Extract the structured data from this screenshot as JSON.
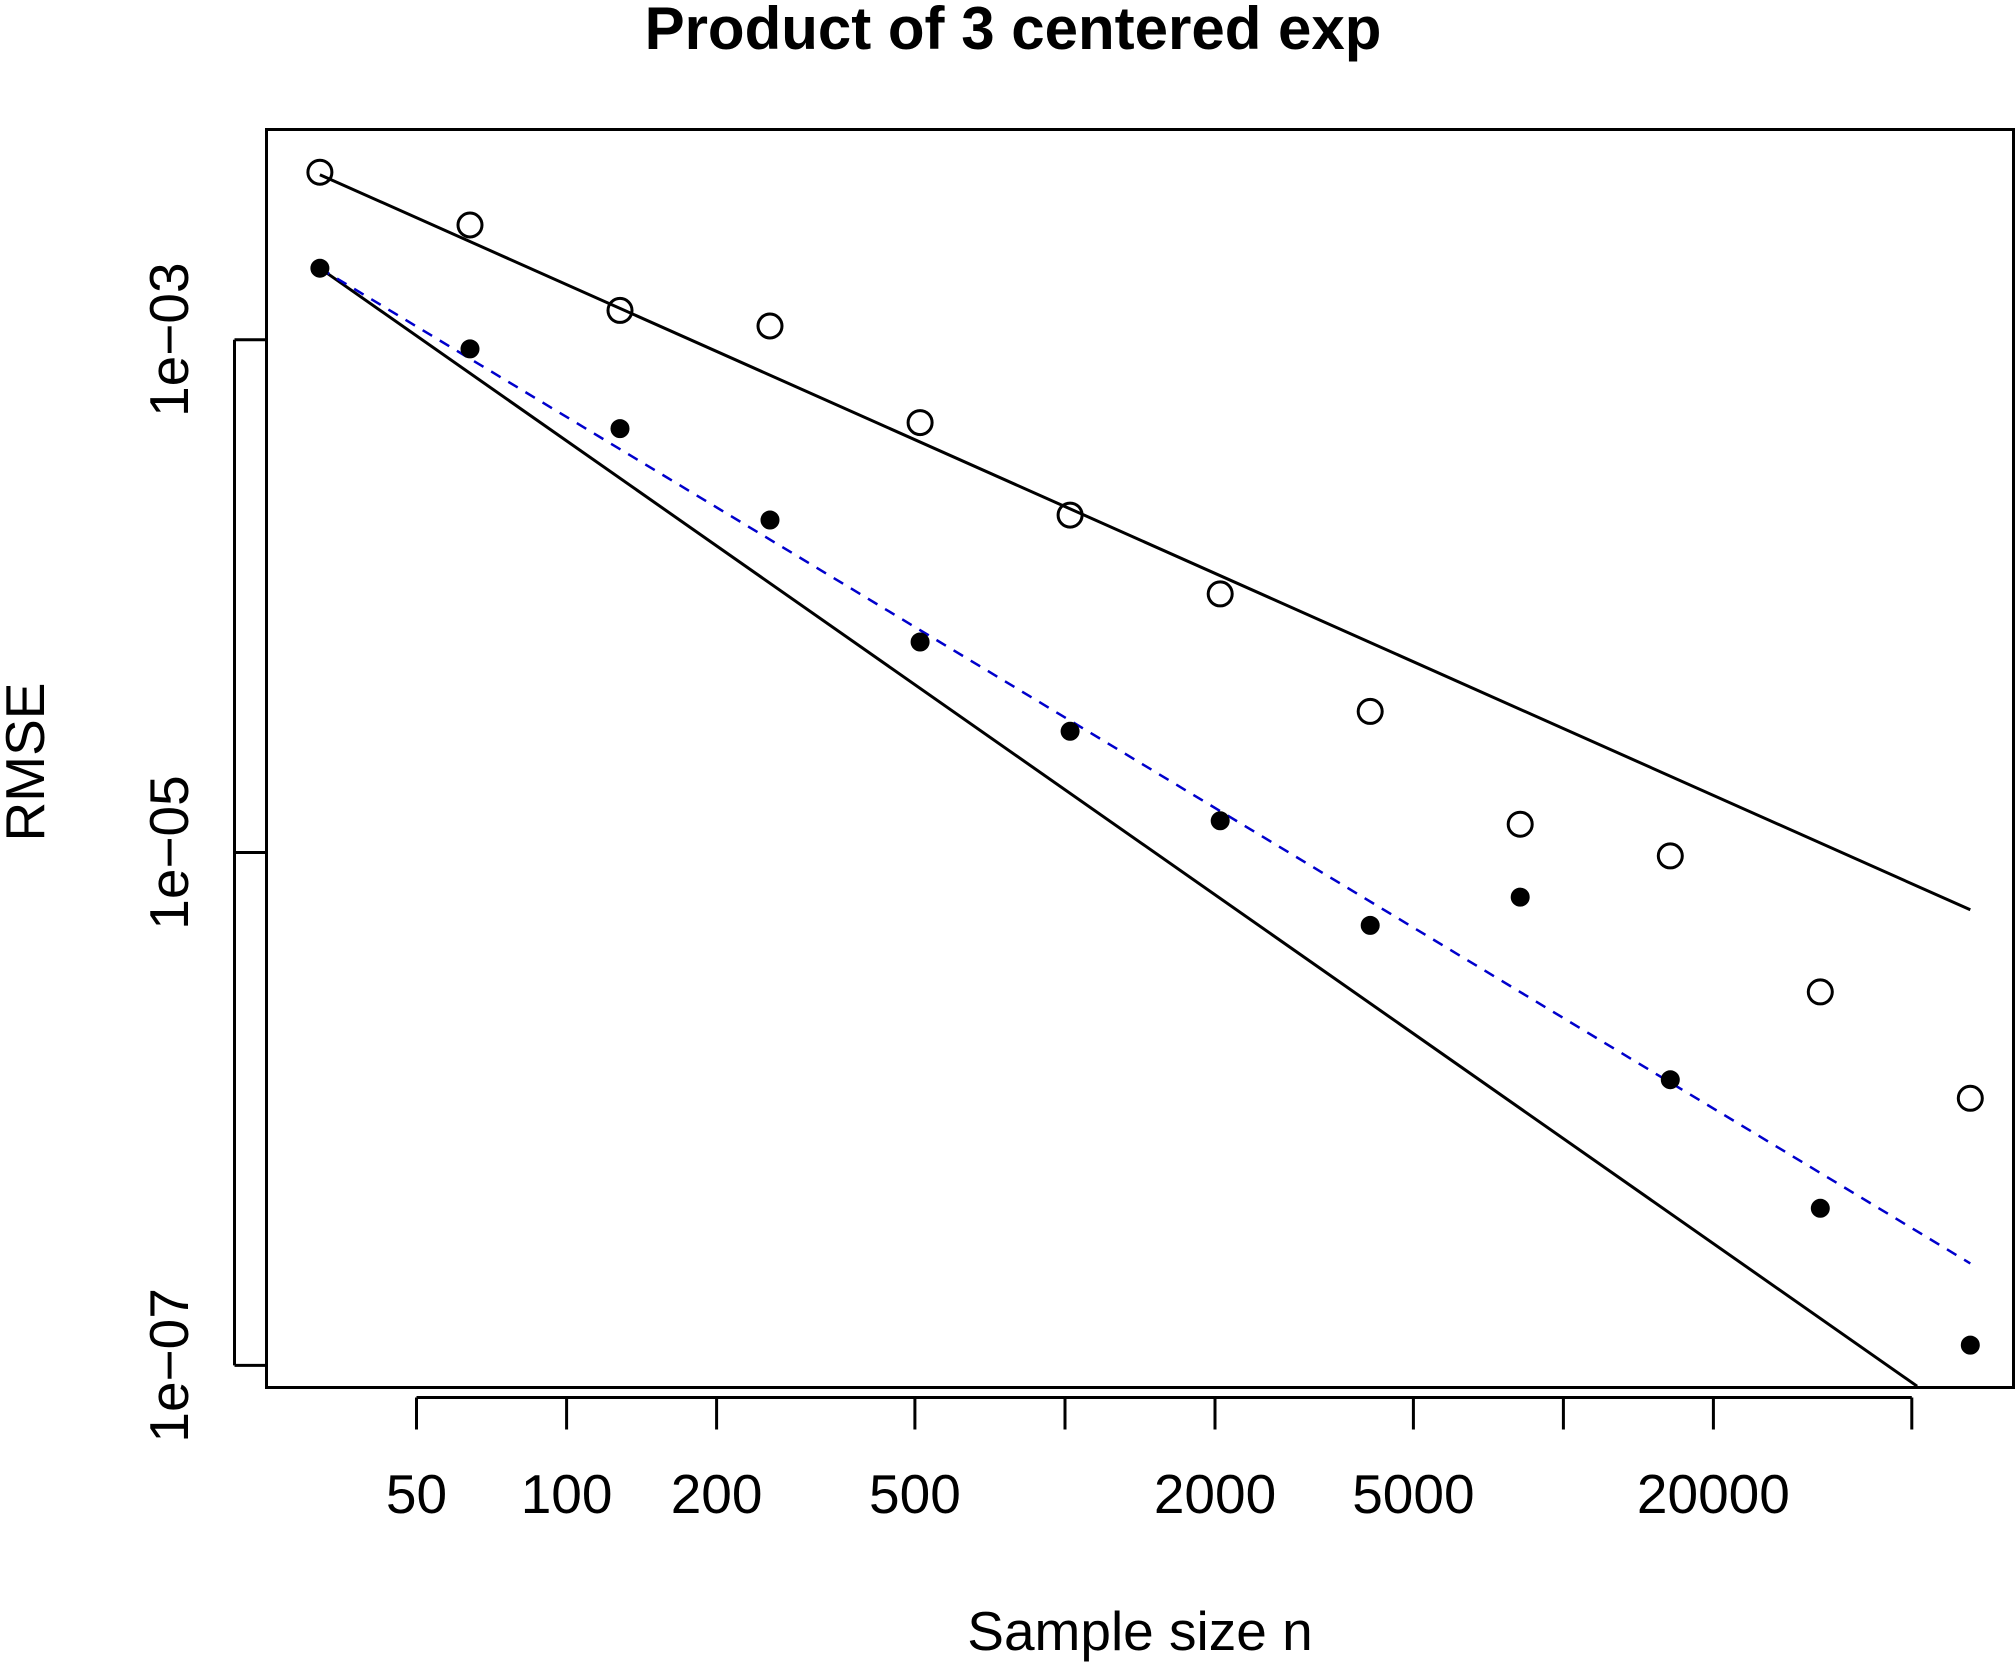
{
  "chart_data": {
    "type": "scatter",
    "title": "Product of 3 centered exp",
    "xlabel": "Sample size n",
    "ylabel": "RMSE",
    "x_scale": "log",
    "y_scale": "log",
    "xlim": [
      25,
      80000
    ],
    "ylim": [
      8.2e-08,
      0.0066
    ],
    "x_tick_positions": [
      50,
      100,
      200,
      500,
      1000,
      2000,
      5000,
      10000,
      20000,
      50000
    ],
    "x_tick_labels": [
      "50",
      "100",
      "200",
      "500",
      "",
      "2000",
      "5000",
      "",
      "20000",
      ""
    ],
    "y_tick_positions": [
      1e-07,
      1e-05,
      0.001
    ],
    "y_tick_labels": [
      "1e−07",
      "1e−05",
      "1e−03"
    ],
    "grid": false,
    "legend": "none",
    "x": [
      32,
      64,
      128,
      256,
      512,
      1024,
      2048,
      4096,
      8192,
      16384,
      32768,
      65536
    ],
    "series": [
      {
        "marker": "open-circle",
        "color": "#000000",
        "values": [
          0.0045,
          0.0028,
          0.0013,
          0.00113,
          0.000475,
          0.000207,
          0.000102,
          3.55e-05,
          1.29e-05,
          9.7e-06,
          2.86e-06,
          1.1e-06
        ]
      },
      {
        "marker": "filled-circle",
        "color": "#000000",
        "values": [
          0.0019,
          0.00092,
          0.00045,
          0.000198,
          6.62e-05,
          2.97e-05,
          1.33e-05,
          5.2e-06,
          6.7e-06,
          1.3e-06,
          4.1e-07,
          1.2e-07
        ]
      }
    ],
    "reference_lines": [
      {
        "style": "solid",
        "color": "#000000",
        "x": [
          32,
          65536
        ],
        "y": [
          0.0044,
          5.98e-06
        ]
      },
      {
        "style": "solid",
        "color": "#000000",
        "x": [
          32,
          51240
        ],
        "y": [
          0.0019,
          8.3e-08
        ]
      },
      {
        "style": "dashed",
        "color": "#0000cc",
        "x": [
          32,
          65536
        ],
        "y": [
          0.0019,
          2.5e-07
        ]
      }
    ]
  }
}
